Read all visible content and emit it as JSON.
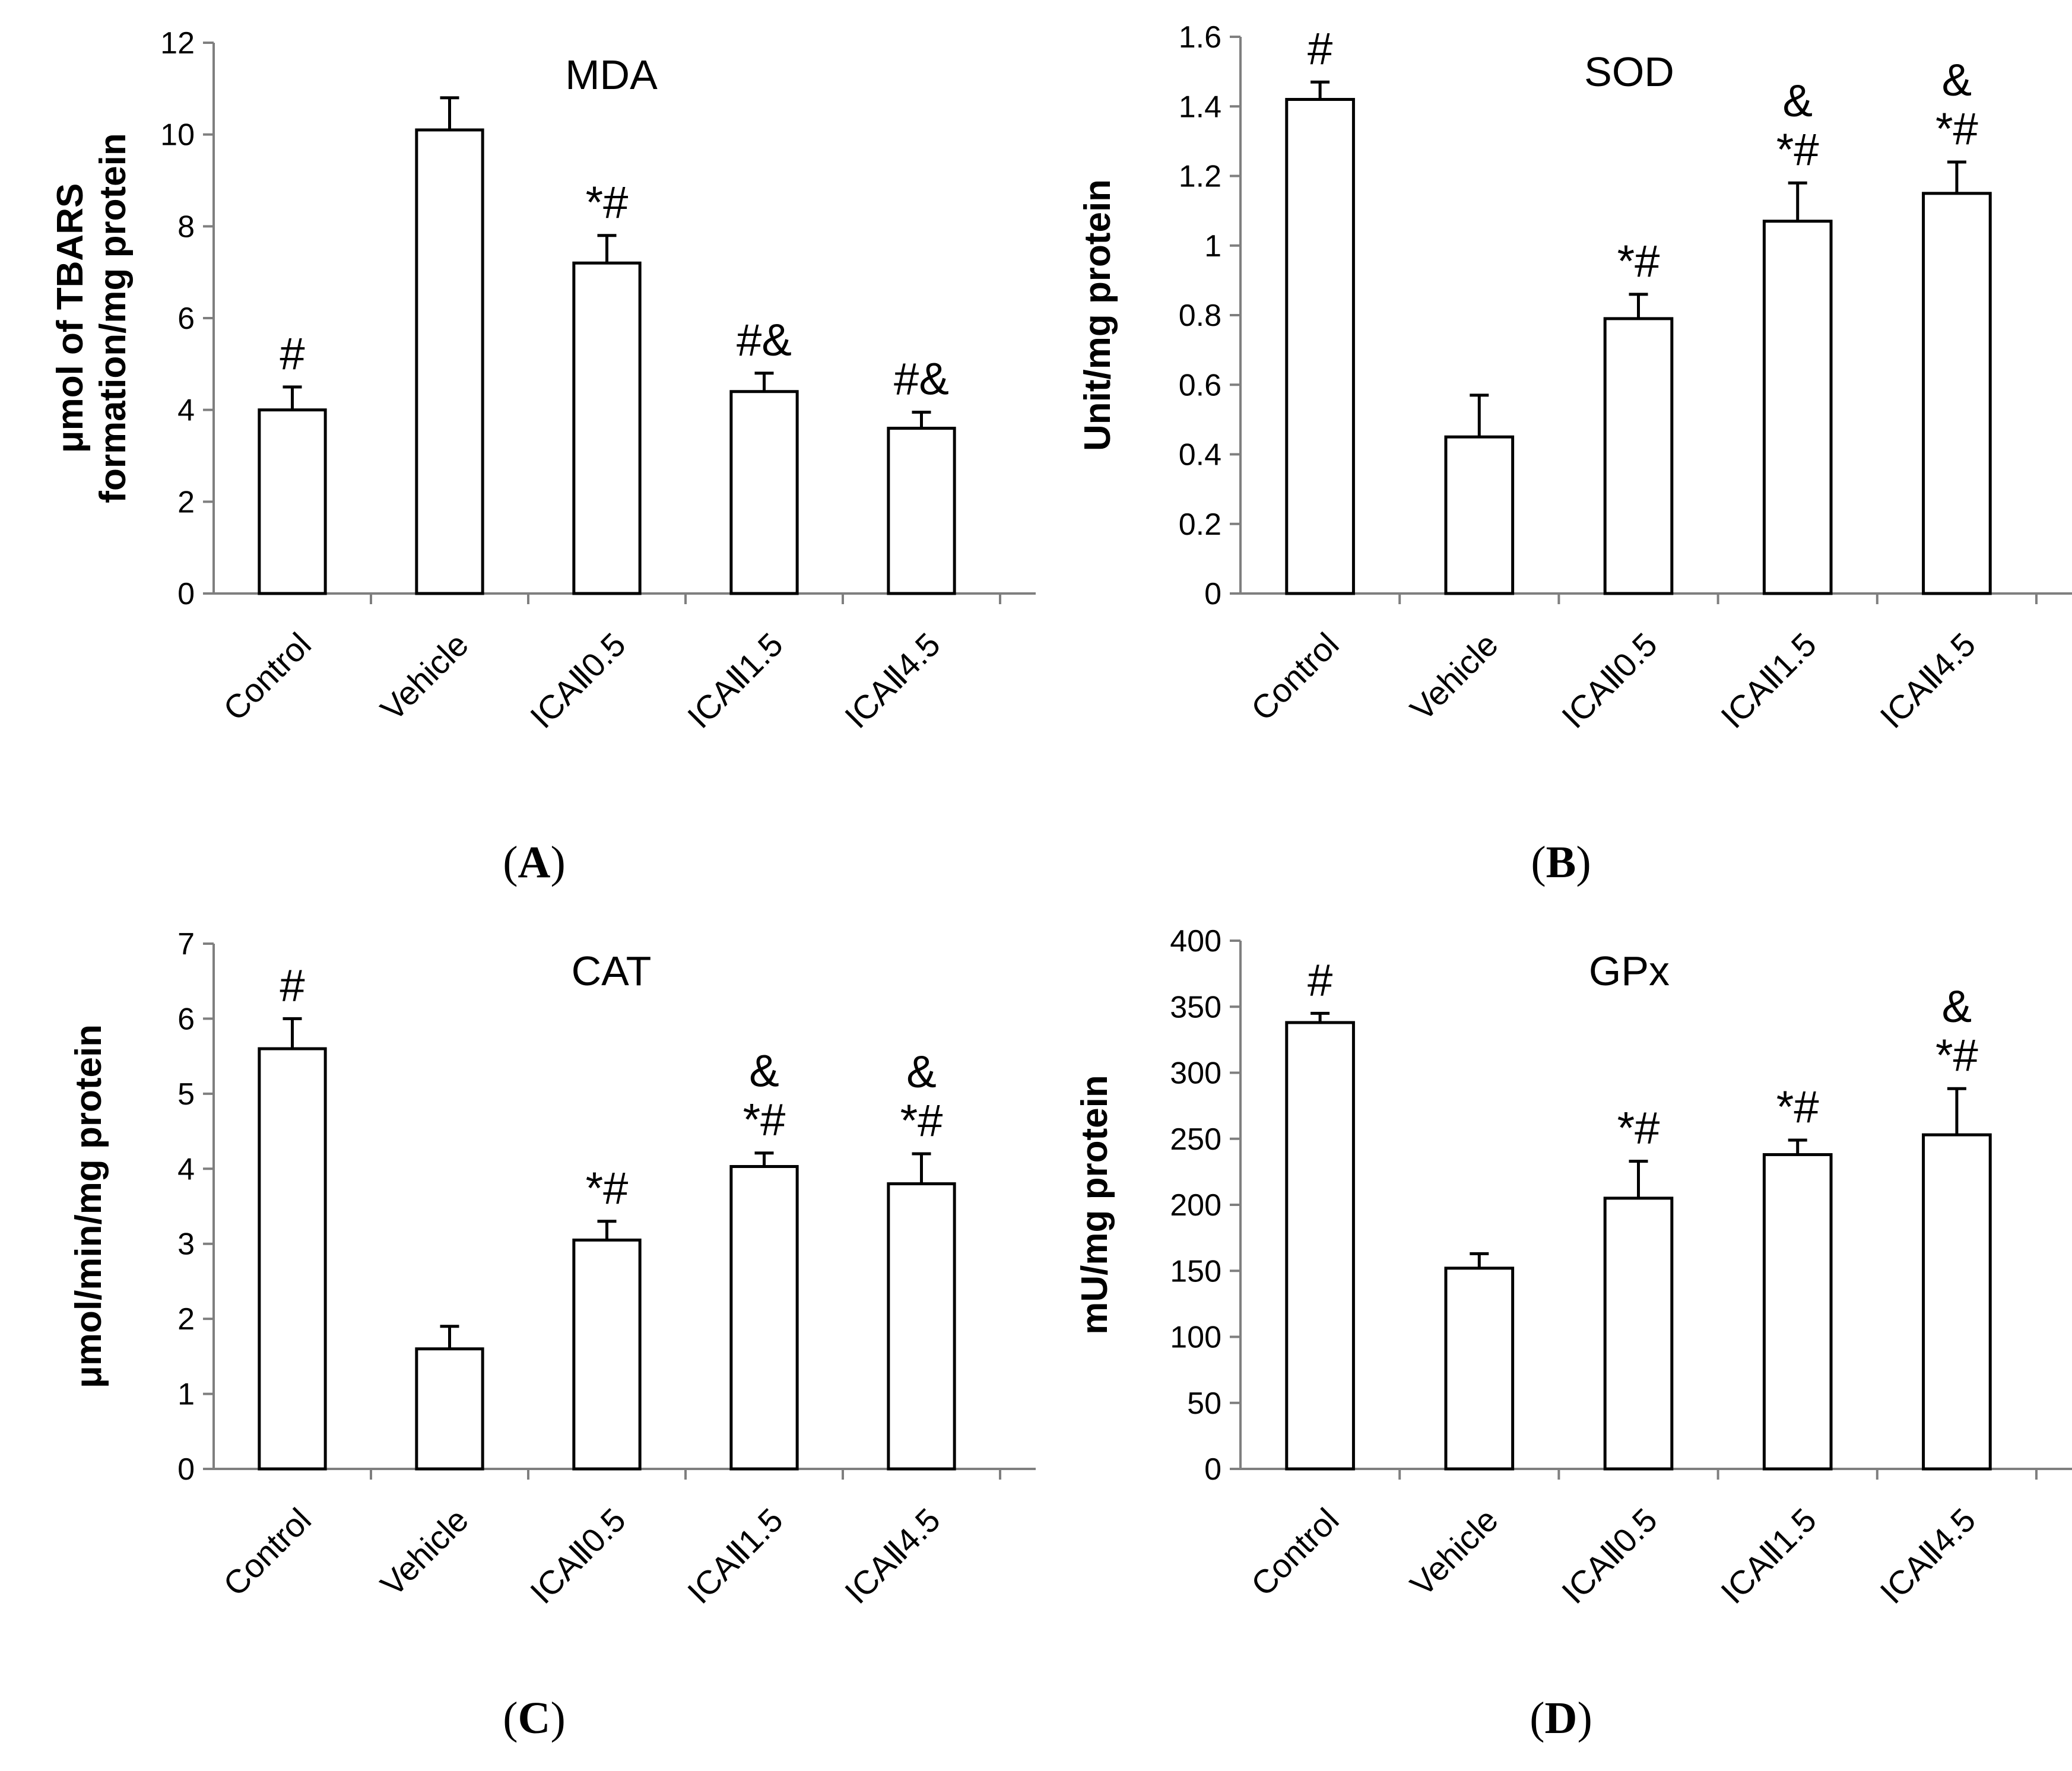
{
  "chart_data": [
    {
      "type": "bar",
      "panel_label": {
        "open": "(",
        "letter": "A",
        "close": ")"
      },
      "title": "MDA",
      "ylabel_lines": [
        "μmol of TBARS",
        "formation/mg protein"
      ],
      "categories": [
        "Control",
        "Vehicle",
        "ICAⅡ0.5",
        "ICAⅡ1.5",
        "ICAⅡ4.5"
      ],
      "values": [
        4.0,
        10.1,
        7.2,
        4.4,
        3.6
      ],
      "errors": [
        0.5,
        0.7,
        0.6,
        0.4,
        0.35
      ],
      "annotations": [
        [
          "#"
        ],
        [],
        [
          "*#"
        ],
        [
          "#&"
        ],
        [
          "#&"
        ]
      ],
      "ylim": [
        0,
        12
      ],
      "yticks": [
        0,
        2,
        4,
        6,
        8,
        10,
        12
      ],
      "ytick_labels": [
        "0",
        "2",
        "4",
        "6",
        "8",
        "10",
        "12"
      ]
    },
    {
      "type": "bar",
      "panel_label": {
        "open": "(",
        "letter": "B",
        "close": ")"
      },
      "title": "SOD",
      "ylabel_lines": [
        "Unit/mg protein"
      ],
      "categories": [
        "Control",
        "Vehicle",
        "ICAⅡ0.5",
        "ICAⅡ1.5",
        "ICAⅡ4.5"
      ],
      "values": [
        1.42,
        0.45,
        0.79,
        1.07,
        1.15
      ],
      "errors": [
        0.05,
        0.12,
        0.07,
        0.11,
        0.09
      ],
      "annotations": [
        [
          "#"
        ],
        [],
        [
          "*#"
        ],
        [
          "&",
          "*#"
        ],
        [
          "&",
          "*#"
        ]
      ],
      "ylim": [
        0,
        1.6
      ],
      "yticks": [
        0,
        0.2,
        0.4,
        0.6,
        0.8,
        1.0,
        1.2,
        1.4,
        1.6
      ],
      "ytick_labels": [
        "0",
        "0.2",
        "0.4",
        "0.6",
        "0.8",
        "1",
        "1.2",
        "1.4",
        "1.6"
      ]
    },
    {
      "type": "bar",
      "panel_label": {
        "open": "(",
        "letter": "C",
        "close": ")"
      },
      "title": "CAT",
      "ylabel_lines": [
        "μmol/min/mg protein"
      ],
      "categories": [
        "Control",
        "Vehicle",
        "ICAⅡ0.5",
        "ICAⅡ1.5",
        "ICAⅡ4.5"
      ],
      "values": [
        5.6,
        1.6,
        3.05,
        4.03,
        3.8
      ],
      "errors": [
        0.4,
        0.3,
        0.25,
        0.18,
        0.4
      ],
      "annotations": [
        [
          "#"
        ],
        [],
        [
          "*#"
        ],
        [
          "&",
          "*#"
        ],
        [
          "&",
          "*#"
        ]
      ],
      "ylim": [
        0,
        7
      ],
      "yticks": [
        0,
        1,
        2,
        3,
        4,
        5,
        6,
        7
      ],
      "ytick_labels": [
        "0",
        "1",
        "2",
        "3",
        "4",
        "5",
        "6",
        "7"
      ]
    },
    {
      "type": "bar",
      "panel_label": {
        "open": "(",
        "letter": "D",
        "close": ")"
      },
      "title": "GPx",
      "ylabel_lines": [
        "mU/mg protein"
      ],
      "categories": [
        "Control",
        "Vehicle",
        "ICAⅡ0.5",
        "ICAⅡ1.5",
        "ICAⅡ4.5"
      ],
      "values": [
        338,
        152,
        205,
        238,
        253
      ],
      "errors": [
        7,
        11,
        28,
        11,
        35
      ],
      "annotations": [
        [
          "#"
        ],
        [],
        [
          "*#"
        ],
        [
          "*#"
        ],
        [
          "&",
          "*#"
        ]
      ],
      "ylim": [
        0,
        400
      ],
      "yticks": [
        0,
        50,
        100,
        150,
        200,
        250,
        300,
        350,
        400
      ],
      "ytick_labels": [
        "0",
        "50",
        "100",
        "150",
        "200",
        "250",
        "300",
        "350",
        "400"
      ]
    }
  ]
}
